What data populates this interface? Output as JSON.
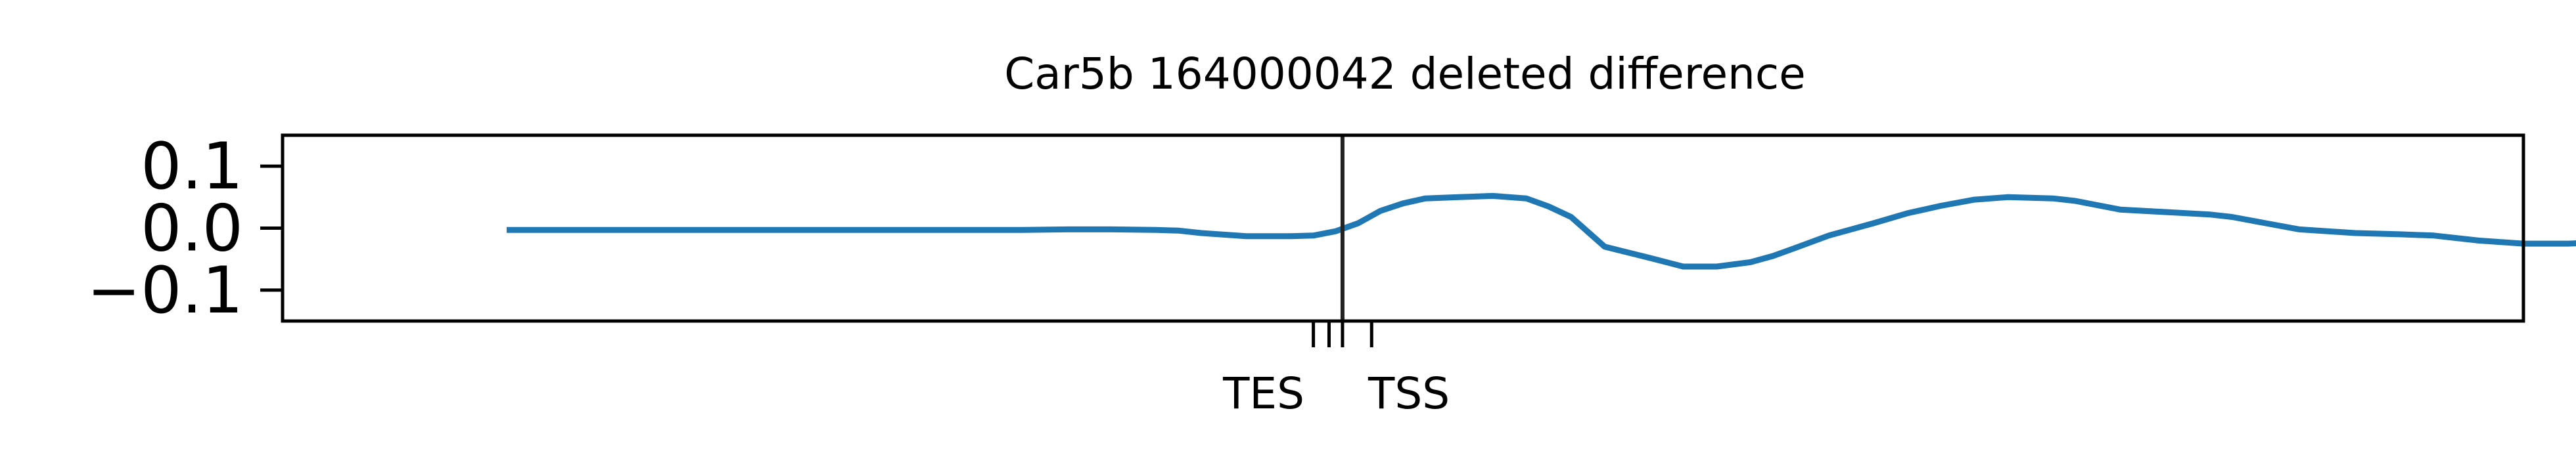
{
  "chart_data": {
    "type": "line",
    "title": "Car5b 164000042 deleted difference",
    "xlabel": "",
    "ylabel": "",
    "ylim": [
      -0.15,
      0.15
    ],
    "yticks": [
      0.1,
      0.0,
      -0.1
    ],
    "ytick_labels": [
      "0.1",
      "0.0",
      "−0.1"
    ],
    "xlim": [
      0,
      1000
    ],
    "markers": [
      {
        "label": "TES",
        "positions": [
          460,
          467
        ]
      },
      {
        "label": "TSS",
        "positions": [
          473,
          486
        ]
      }
    ],
    "vline": 473,
    "grid": false,
    "legend": "none",
    "color": "#1f77b4",
    "series": [
      {
        "x": [
          100,
          200,
          250,
          300,
          330,
          350,
          370,
          390,
          400,
          410,
          430,
          450,
          460,
          470,
          480,
          490,
          500,
          510,
          525,
          540,
          555,
          565,
          575,
          590,
          610,
          625,
          640,
          655,
          665,
          675,
          690,
          710,
          725,
          740,
          755,
          770,
          790,
          800,
          820,
          845,
          860,
          870,
          885,
          900,
          925,
          945,
          960,
          980,
          1000,
          1020,
          1042
        ],
        "y": [
          -0.003,
          -0.003,
          -0.003,
          -0.003,
          -0.003,
          -0.002,
          -0.002,
          -0.003,
          -0.004,
          -0.008,
          -0.013,
          -0.013,
          -0.012,
          -0.005,
          0.008,
          0.028,
          0.04,
          0.048,
          0.05,
          0.052,
          0.048,
          0.035,
          0.018,
          -0.03,
          -0.048,
          -0.062,
          -0.062,
          -0.055,
          -0.045,
          -0.032,
          -0.012,
          0.008,
          0.024,
          0.036,
          0.046,
          0.05,
          0.048,
          0.044,
          0.03,
          0.025,
          0.022,
          0.018,
          0.008,
          -0.002,
          -0.008,
          -0.01,
          -0.012,
          -0.02,
          -0.025,
          -0.025,
          -0.022
        ]
      }
    ]
  }
}
